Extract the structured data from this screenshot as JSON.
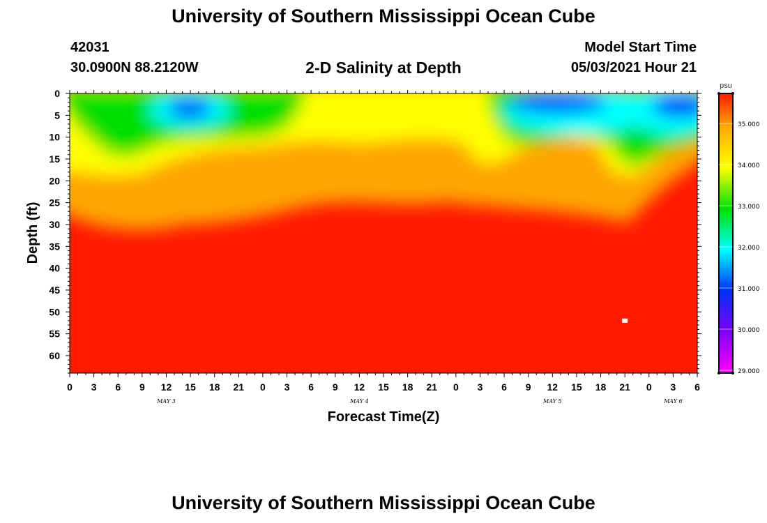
{
  "header": {
    "title": "University of Southern Mississippi Ocean Cube",
    "station_id": "42031",
    "station_coords": "30.0900N  88.2120W",
    "plot_title": "2-D Salinity at Depth",
    "model_start_label": "Model Start Time",
    "model_start_value": "05/03/2021 Hour 21"
  },
  "footer": {
    "title": "University of Southern Mississippi Ocean Cube"
  },
  "chart_data": {
    "type": "heatmap",
    "title": "2-D Salinity at Depth",
    "xlabel": "Forecast Time(Z)",
    "ylabel": "Depth (ft)",
    "x_tick_labels": [
      "0",
      "3",
      "6",
      "9",
      "12",
      "15",
      "18",
      "21",
      "0",
      "3",
      "6",
      "9",
      "12",
      "15",
      "18",
      "21",
      "0",
      "3",
      "6",
      "9",
      "12",
      "15",
      "18",
      "21",
      "0",
      "3",
      "6"
    ],
    "x_day_labels": [
      {
        "label": "MAY 3",
        "tick_index": 4
      },
      {
        "label": "MAY 4",
        "tick_index": 12
      },
      {
        "label": "MAY 5",
        "tick_index": 20
      },
      {
        "label": "MAY 6",
        "tick_index": 25
      }
    ],
    "x_range_hours": [
      0,
      78
    ],
    "y_tick_labels": [
      "0",
      "5",
      "10",
      "15",
      "20",
      "25",
      "30",
      "35",
      "40",
      "45",
      "50",
      "55",
      "60"
    ],
    "y_range_ft": [
      0,
      64
    ],
    "colorbar": {
      "unit": "psu",
      "range": [
        29.0,
        35.8
      ],
      "tick_values": [
        29,
        30,
        31,
        32,
        33,
        34,
        35
      ],
      "tick_labels": [
        "29.000",
        "30.000",
        "31.000",
        "32.000",
        "33.000",
        "34.000",
        "35.000"
      ]
    },
    "colors": {
      "max": "#ff1a00",
      "high": "#ffa500",
      "mid": "#ffff00",
      "low": "#00e000",
      "lower": "#00ffff",
      "lowest": "#0030ff",
      "min": "#ff00ff"
    },
    "marker": {
      "hour": 69,
      "depth_ft": 52
    },
    "grid": false,
    "legend_placement": "right"
  }
}
